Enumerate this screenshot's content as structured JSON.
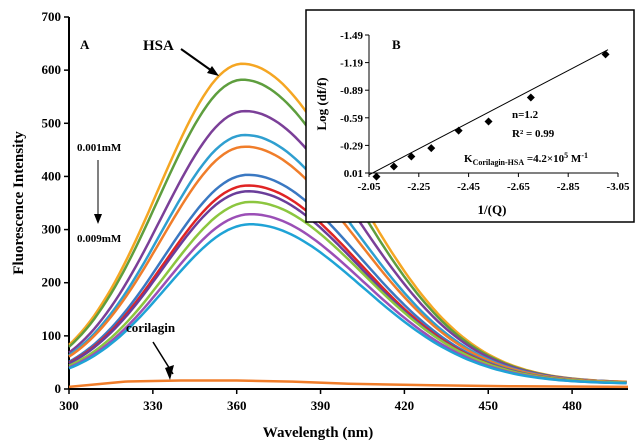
{
  "chart_data": {
    "type": "line",
    "title": "",
    "panel_label": "A",
    "xlabel": "Wavelength (nm)",
    "ylabel": "Fluorescence Intensity",
    "xlim": [
      300,
      500
    ],
    "ylim": [
      0,
      700
    ],
    "x_ticks": [
      300,
      330,
      360,
      390,
      420,
      450,
      480
    ],
    "y_ticks": [
      0,
      100,
      200,
      300,
      400,
      500,
      600,
      700
    ],
    "grid": false,
    "series": [
      {
        "color": "#f5a623",
        "peak_x": 362,
        "peak_y": 612,
        "tail_y": 12
      },
      {
        "color": "#5e9e3e",
        "peak_x": 362,
        "peak_y": 582,
        "tail_y": 12
      },
      {
        "color": "#7b3f98",
        "peak_x": 363,
        "peak_y": 523,
        "tail_y": 12
      },
      {
        "color": "#2f9fd0",
        "peak_x": 363,
        "peak_y": 478,
        "tail_y": 12
      },
      {
        "color": "#f07d2a",
        "peak_x": 363,
        "peak_y": 456,
        "tail_y": 12
      },
      {
        "color": "#3a78c2",
        "peak_x": 364,
        "peak_y": 403,
        "tail_y": 11
      },
      {
        "color": "#e02424",
        "peak_x": 364,
        "peak_y": 383,
        "tail_y": 11
      },
      {
        "color": "#6a3d9a",
        "peak_x": 364,
        "peak_y": 372,
        "tail_y": 11
      },
      {
        "color": "#8cc63f",
        "peak_x": 365,
        "peak_y": 352,
        "tail_y": 11
      },
      {
        "color": "#9b4fb6",
        "peak_x": 365,
        "peak_y": 329,
        "tail_y": 10
      },
      {
        "color": "#1fa3d6",
        "peak_x": 365,
        "peak_y": 310,
        "tail_y": 10
      }
    ],
    "corilagin_series": {
      "color": "#f07d2a",
      "points": [
        [
          300,
          4
        ],
        [
          310,
          9
        ],
        [
          320,
          14
        ],
        [
          340,
          16
        ],
        [
          360,
          16
        ],
        [
          380,
          14
        ],
        [
          400,
          10
        ],
        [
          430,
          7
        ],
        [
          460,
          5
        ],
        [
          500,
          4
        ]
      ]
    },
    "annotations": {
      "hsa": "HSA",
      "conc_top": "0.001mM",
      "conc_bottom": "0.009mM",
      "corilagin": "corilagin"
    },
    "inset": {
      "panel_label": "B",
      "type": "scatter",
      "xlabel": "1/(Q)",
      "ylabel": "Log (df/f)",
      "x_ticks": [
        "-2.05",
        "-2.25",
        "-2.45",
        "-2.65",
        "-2.85",
        "-3.05"
      ],
      "y_ticks": [
        "0.01",
        "-0.29",
        "-0.59",
        "-0.89",
        "-1.19",
        "-1.49"
      ],
      "xlim": [
        -2.05,
        -3.05
      ],
      "ylim": [
        0.01,
        -1.49
      ],
      "points": [
        [
          -2.08,
          0.05
        ],
        [
          -2.15,
          -0.06
        ],
        [
          -2.22,
          -0.17
        ],
        [
          -2.3,
          -0.26
        ],
        [
          -2.41,
          -0.45
        ],
        [
          -2.53,
          -0.55
        ],
        [
          -2.7,
          -0.81
        ],
        [
          -3.0,
          -1.28
        ]
      ],
      "fit_line": [
        [
          -2.05,
          0.03
        ],
        [
          -3.01,
          -1.33
        ]
      ],
      "n_label": "n=1.2",
      "r2_label": "R² = 0.99",
      "k_label_main": "K",
      "k_label_sub": "Corilagin-HSA",
      "k_label_value": " =4.2×10",
      "k_label_exp": "5",
      "k_label_unit": " M",
      "k_label_unit_exp": "-1"
    }
  }
}
